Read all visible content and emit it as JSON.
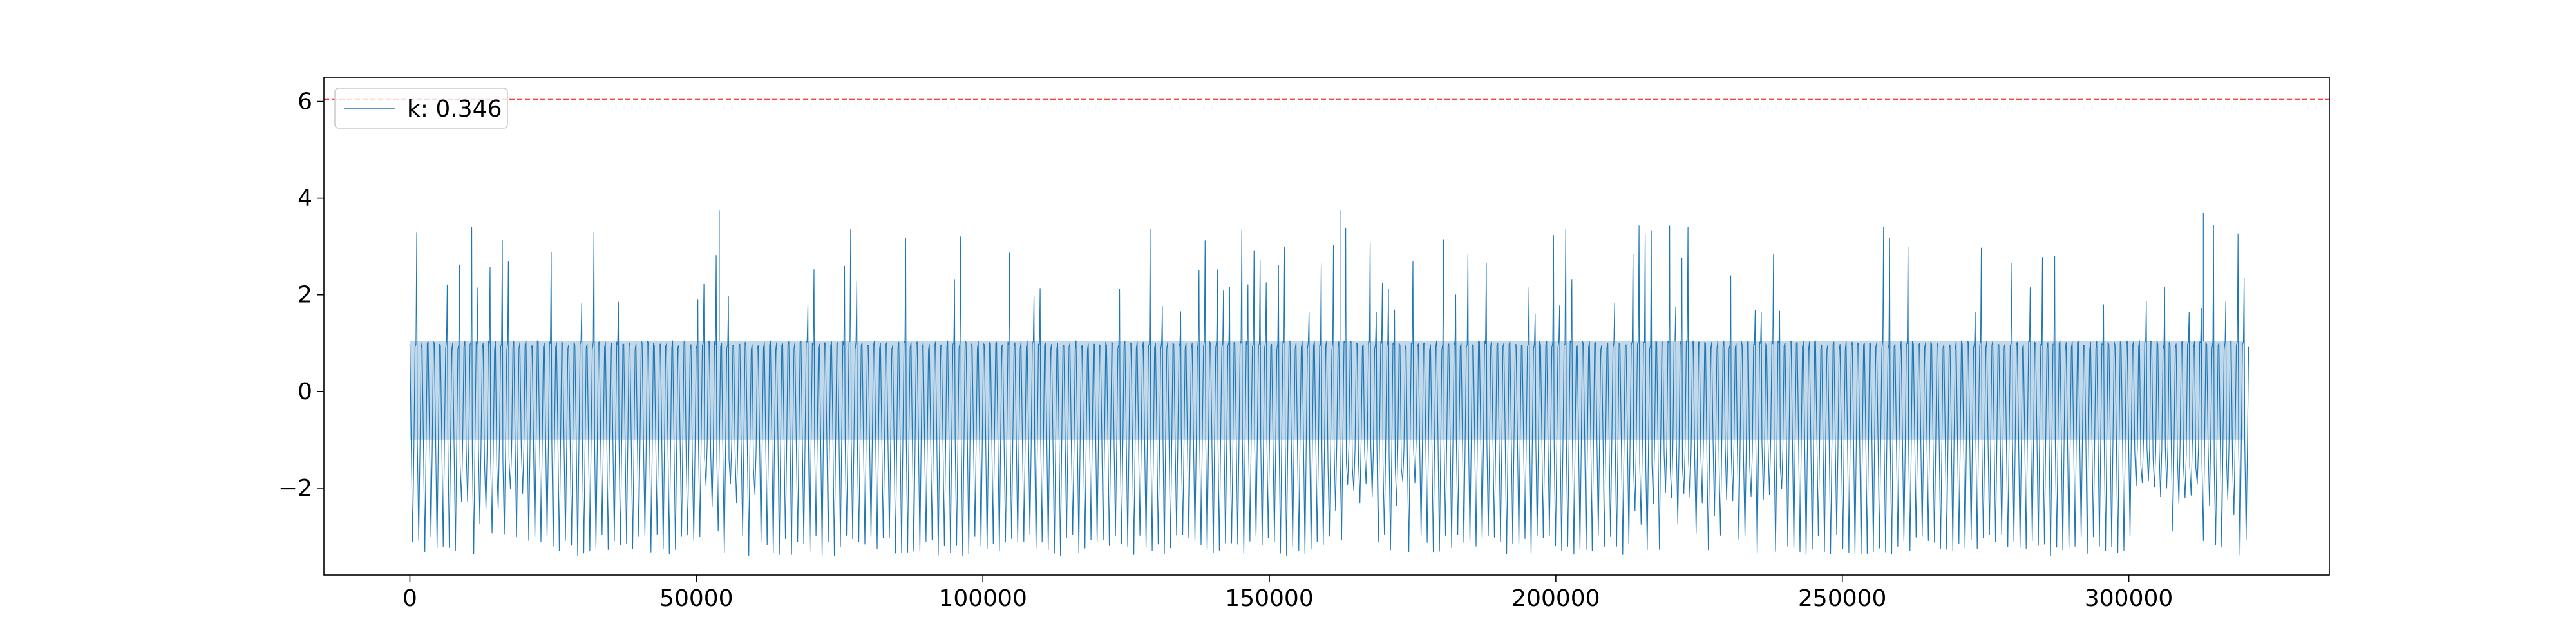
{
  "chart_data": {
    "type": "line",
    "title": "",
    "xlabel": "",
    "ylabel": "",
    "xlim": [
      -15000,
      335000
    ],
    "ylim": [
      -3.8,
      6.5
    ],
    "x_ticks": [
      0,
      50000,
      100000,
      150000,
      200000,
      250000,
      300000
    ],
    "x_tick_labels": [
      "0",
      "50000",
      "100000",
      "150000",
      "200000",
      "250000",
      "300000"
    ],
    "y_ticks": [
      -2,
      0,
      2,
      4,
      6
    ],
    "y_tick_labels": [
      "−2",
      "0",
      "2",
      "4",
      "6"
    ],
    "grid": false,
    "legend": {
      "position": "top-left",
      "entries": [
        "k: 0.346"
      ]
    },
    "threshold": {
      "y": 6.05,
      "color": "#ff0000",
      "style": "dashed"
    },
    "series": [
      {
        "name": "k: 0.346",
        "color": "#1f77b4",
        "x_range": [
          0,
          320000
        ],
        "envelope": {
          "baseline_high": 1.05,
          "baseline_low": -1.0,
          "trough_min": -3.4,
          "peak_max": 3.75,
          "burst_regions": [
            [
              8000,
              20000
            ],
            [
              48000,
              60000
            ],
            [
              158000,
              175000
            ],
            [
              213000,
              240000
            ],
            [
              300000,
              318000
            ]
          ],
          "notable_peaks": [
            {
              "x": 54000,
              "y": 3.75
            },
            {
              "x": 162500,
              "y": 3.75
            },
            {
              "x": 313000,
              "y": 3.7
            }
          ]
        }
      }
    ]
  }
}
